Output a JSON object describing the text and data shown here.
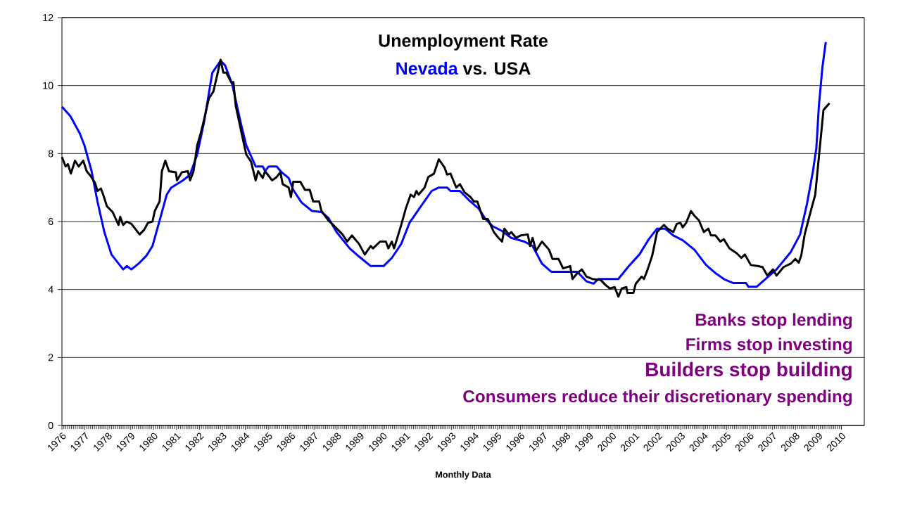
{
  "chart_data": {
    "type": "line",
    "title": "Unemployment Rate",
    "subtitle": "vs.",
    "xlabel": "Monthly Data",
    "xlim": [
      1976,
      2011
    ],
    "xticks": [
      1976,
      1977,
      1978,
      1979,
      1980,
      1981,
      1982,
      1983,
      1984,
      1985,
      1986,
      1987,
      1988,
      1989,
      1990,
      1991,
      1992,
      1993,
      1994,
      1995,
      1996,
      1997,
      1998,
      1999,
      2000,
      2001,
      2002,
      2003,
      2004,
      2005,
      2006,
      2007,
      2008,
      2009,
      2010
    ],
    "ylim": [
      0,
      12
    ],
    "yticks": [
      0,
      2,
      4,
      6,
      8,
      10,
      12
    ],
    "grid": "y",
    "marker": "none",
    "annotations": [
      "Banks stop lending",
      "Firms stop investing",
      "Builders stop building",
      "Consumers reduce their discretionary spending"
    ],
    "series": [
      {
        "name": "Nevada",
        "color": "#0000ff",
        "x": [
          1976.0,
          1976.37,
          1976.78,
          1976.98,
          1977.29,
          1977.55,
          1977.85,
          1978.16,
          1978.67,
          1978.83,
          1979.03,
          1979.34,
          1979.69,
          1979.95,
          1980.26,
          1980.57,
          1980.77,
          1981.28,
          1981.59,
          1981.9,
          1982.2,
          1982.56,
          1982.92,
          1983.12,
          1983.43,
          1983.79,
          1984.04,
          1984.45,
          1984.76,
          1984.86,
          1985.02,
          1985.37,
          1985.58,
          1985.89,
          1986.09,
          1986.45,
          1986.91,
          1987.32,
          1987.63,
          1987.98,
          1988.55,
          1988.96,
          1989.47,
          1990.03,
          1990.39,
          1990.8,
          1991.16,
          1991.62,
          1992.13,
          1992.44,
          1992.8,
          1992.95,
          1993.36,
          1993.77,
          1994.18,
          1994.48,
          1994.79,
          1995.2,
          1995.6,
          1996.17,
          1996.53,
          1996.94,
          1997.35,
          1998.48,
          1998.88,
          1999.19,
          1999.4,
          2000.27,
          2000.73,
          2001.19,
          2001.6,
          2001.96,
          2002.31,
          2002.67,
          2003.08,
          2003.59,
          2004.1,
          2004.51,
          2004.92,
          2005.28,
          2005.84,
          2005.95,
          2006.3,
          2006.66,
          2007.17,
          2007.79,
          2008.2,
          2008.5,
          2008.76,
          2008.91,
          2009.02,
          2009.17,
          2009.32
        ],
        "values": [
          9.38,
          9.1,
          8.59,
          8.24,
          7.49,
          6.59,
          5.69,
          5.03,
          4.59,
          4.69,
          4.59,
          4.76,
          5.0,
          5.28,
          6.03,
          6.79,
          7.0,
          7.21,
          7.38,
          7.97,
          8.93,
          10.38,
          10.73,
          10.59,
          10.03,
          8.93,
          8.24,
          7.62,
          7.62,
          7.49,
          7.62,
          7.62,
          7.45,
          7.28,
          6.93,
          6.56,
          6.31,
          6.28,
          6.1,
          5.69,
          5.21,
          4.97,
          4.69,
          4.69,
          4.93,
          5.34,
          5.96,
          6.41,
          6.9,
          7.0,
          7.0,
          6.9,
          6.9,
          6.62,
          6.38,
          6.07,
          5.86,
          5.72,
          5.52,
          5.41,
          5.28,
          4.76,
          4.52,
          4.52,
          4.24,
          4.17,
          4.31,
          4.31,
          4.69,
          5.03,
          5.48,
          5.79,
          5.79,
          5.59,
          5.45,
          5.17,
          4.72,
          4.48,
          4.29,
          4.19,
          4.19,
          4.08,
          4.08,
          4.29,
          4.59,
          5.1,
          5.62,
          6.52,
          7.48,
          8.17,
          9.41,
          10.52,
          11.28
        ]
      },
      {
        "name": "USA",
        "color": "#000000",
        "x": [
          1976.0,
          1976.16,
          1976.26,
          1976.39,
          1976.57,
          1976.73,
          1976.93,
          1977.08,
          1977.24,
          1977.44,
          1977.55,
          1977.7,
          1977.8,
          1977.96,
          1978.21,
          1978.47,
          1978.54,
          1978.67,
          1978.82,
          1979.03,
          1979.39,
          1979.59,
          1979.75,
          1979.95,
          1980.05,
          1980.26,
          1980.36,
          1980.51,
          1980.67,
          1980.97,
          1981.02,
          1981.23,
          1981.49,
          1981.59,
          1981.74,
          1981.9,
          1982.05,
          1982.2,
          1982.41,
          1982.61,
          1982.82,
          1982.92,
          1983.04,
          1983.17,
          1983.38,
          1983.48,
          1983.58,
          1983.84,
          1984.04,
          1984.25,
          1984.45,
          1984.56,
          1984.76,
          1984.86,
          1985.17,
          1985.37,
          1985.53,
          1985.63,
          1985.89,
          1985.99,
          1986.09,
          1986.4,
          1986.6,
          1986.81,
          1986.96,
          1987.22,
          1987.32,
          1987.63,
          1987.83,
          1988.24,
          1988.44,
          1988.65,
          1988.96,
          1989.21,
          1989.47,
          1989.57,
          1989.88,
          1990.13,
          1990.24,
          1990.39,
          1990.49,
          1990.8,
          1991.0,
          1991.21,
          1991.36,
          1991.46,
          1991.56,
          1991.82,
          1991.98,
          1992.23,
          1992.44,
          1992.69,
          1992.8,
          1992.95,
          1993.2,
          1993.36,
          1993.56,
          1993.82,
          1993.97,
          1994.12,
          1994.38,
          1994.58,
          1994.84,
          1995.04,
          1995.2,
          1995.3,
          1995.5,
          1995.6,
          1995.81,
          1996.01,
          1996.32,
          1996.42,
          1996.53,
          1996.68,
          1996.94,
          1997.25,
          1997.4,
          1997.66,
          1997.86,
          1998.17,
          1998.27,
          1998.48,
          1998.68,
          1998.88,
          1999.14,
          1999.5,
          1999.7,
          1999.9,
          2000.11,
          2000.27,
          2000.42,
          2000.62,
          2000.67,
          2000.93,
          2001.03,
          2001.29,
          2001.39,
          2001.55,
          2001.75,
          2001.96,
          2002.26,
          2002.42,
          2002.67,
          2002.82,
          2002.98,
          2003.08,
          2003.23,
          2003.44,
          2003.59,
          2003.79,
          2004.0,
          2004.2,
          2004.31,
          2004.51,
          2004.72,
          2004.87,
          2005.12,
          2005.43,
          2005.64,
          2005.79,
          2006.05,
          2006.35,
          2006.56,
          2006.77,
          2007.02,
          2007.17,
          2007.48,
          2007.79,
          2007.99,
          2008.14,
          2008.25,
          2008.4,
          2008.61,
          2008.86,
          2009.02,
          2009.22,
          2009.48
        ],
        "values": [
          7.9,
          7.62,
          7.69,
          7.41,
          7.79,
          7.62,
          7.79,
          7.48,
          7.35,
          7.14,
          6.9,
          6.97,
          6.79,
          6.45,
          6.28,
          5.9,
          6.14,
          5.9,
          6.0,
          5.93,
          5.62,
          5.76,
          5.96,
          6.0,
          6.31,
          6.59,
          7.48,
          7.79,
          7.48,
          7.45,
          7.21,
          7.45,
          7.48,
          7.21,
          7.48,
          8.24,
          8.59,
          9.0,
          9.62,
          9.83,
          10.45,
          10.76,
          10.38,
          10.38,
          10.1,
          10.1,
          9.41,
          8.59,
          7.97,
          7.76,
          7.21,
          7.48,
          7.28,
          7.48,
          7.21,
          7.31,
          7.45,
          7.1,
          7.0,
          6.72,
          7.17,
          7.17,
          6.93,
          6.93,
          6.59,
          6.59,
          6.31,
          6.03,
          5.9,
          5.62,
          5.41,
          5.59,
          5.34,
          5.03,
          5.28,
          5.21,
          5.41,
          5.41,
          5.21,
          5.41,
          5.21,
          5.9,
          6.38,
          6.79,
          6.72,
          6.9,
          6.79,
          7.0,
          7.31,
          7.41,
          7.83,
          7.59,
          7.38,
          7.41,
          7.0,
          7.1,
          6.86,
          6.72,
          6.59,
          6.59,
          6.07,
          6.07,
          5.69,
          5.52,
          5.41,
          5.79,
          5.62,
          5.69,
          5.52,
          5.59,
          5.62,
          5.28,
          5.52,
          5.14,
          5.41,
          5.17,
          4.9,
          4.9,
          4.62,
          4.69,
          4.31,
          4.48,
          4.59,
          4.38,
          4.31,
          4.28,
          4.14,
          4.03,
          4.07,
          3.79,
          4.03,
          4.07,
          3.9,
          3.9,
          4.17,
          4.38,
          4.31,
          4.59,
          5.0,
          5.69,
          5.9,
          5.79,
          5.69,
          5.93,
          5.96,
          5.83,
          5.96,
          6.31,
          6.17,
          6.03,
          5.69,
          5.79,
          5.59,
          5.59,
          5.41,
          5.48,
          5.21,
          5.07,
          4.93,
          5.03,
          4.72,
          4.69,
          4.66,
          4.41,
          4.59,
          4.41,
          4.66,
          4.76,
          4.9,
          4.79,
          5.0,
          5.62,
          6.17,
          6.79,
          7.9,
          9.28,
          9.48
        ]
      }
    ]
  }
}
